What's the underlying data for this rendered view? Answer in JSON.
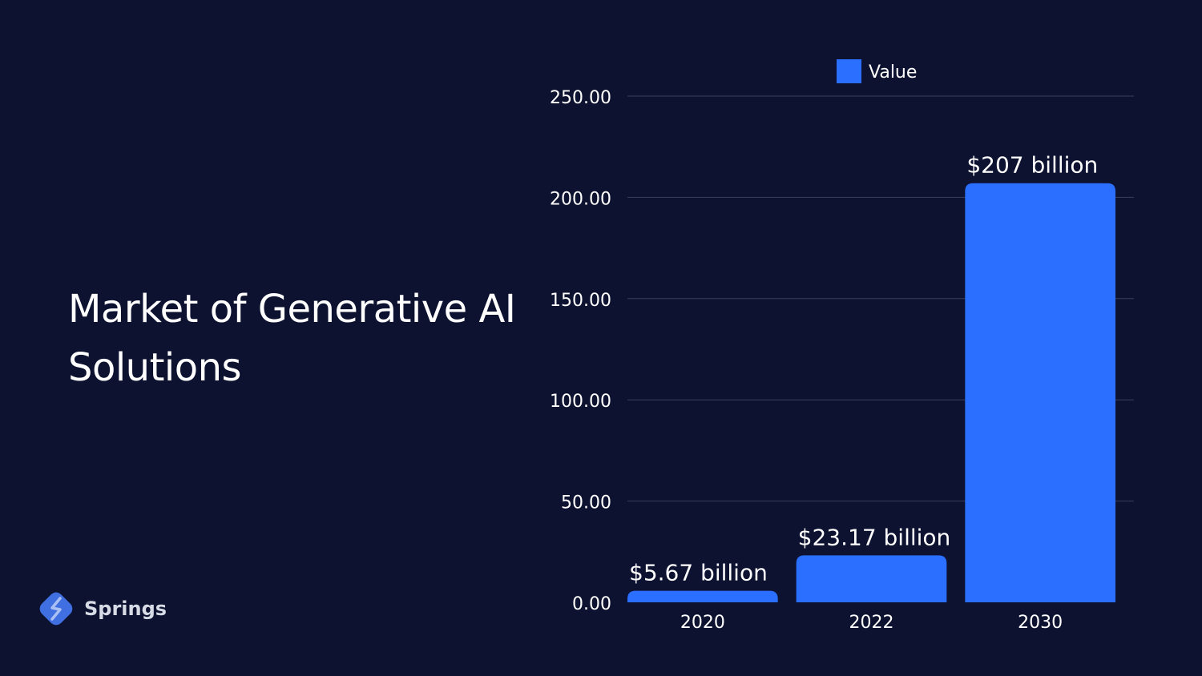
{
  "slide": {
    "title_line1": "Market of Generative AI",
    "title_line2": "Solutions"
  },
  "logo": {
    "text": "Springs",
    "icon": "springs-logo-icon",
    "color": "#3f6fe0"
  },
  "colors": {
    "background": "#0d1230",
    "bar": "#2a6fff",
    "gridline": "#3a3f5c",
    "text": "#ffffff"
  },
  "chart_data": {
    "type": "bar",
    "categories": [
      "2020",
      "2022",
      "2030"
    ],
    "series": [
      {
        "name": "Value",
        "values": [
          5.67,
          23.17,
          207
        ],
        "labels": [
          "$5.67 billion",
          "$23.17 billion",
          "$207 billion"
        ]
      }
    ],
    "ylim": [
      0,
      250
    ],
    "yticks": [
      "0.00",
      "50.00",
      "100.00",
      "150.00",
      "200.00",
      "250.00"
    ],
    "ytick_values": [
      0,
      50,
      100,
      150,
      200,
      250
    ],
    "grid": true,
    "legend": "top-center"
  }
}
